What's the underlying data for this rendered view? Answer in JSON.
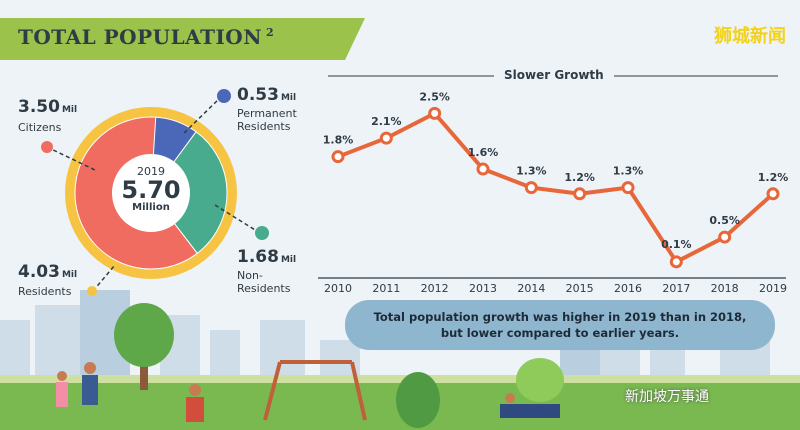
{
  "header": {
    "title": "TOTAL POPULATION",
    "superscript": "2",
    "watermark": "狮城新闻"
  },
  "donut": {
    "year": "2019",
    "total": "5.70",
    "total_unit": "Million",
    "segments": [
      {
        "value": "3.50",
        "unit": "Mil",
        "label": "Citizens",
        "color": "#f06c60",
        "share": 0.614
      },
      {
        "value": "0.53",
        "unit": "Mil",
        "label": "Permanent Residents",
        "color": "#4a67b8",
        "share": 0.093
      },
      {
        "value": "1.68",
        "unit": "Mil",
        "label": "Non-Residents",
        "color": "#48ab8e",
        "share": 0.295
      }
    ],
    "residents": {
      "value": "4.03",
      "unit": "Mil",
      "label": "Residents",
      "color": "#f6c342"
    }
  },
  "chart_data": {
    "type": "line",
    "title": "Slower Growth",
    "categories": [
      "2010",
      "2011",
      "2012",
      "2013",
      "2014",
      "2015",
      "2016",
      "2017",
      "2018",
      "2019"
    ],
    "values": [
      1.8,
      2.1,
      2.5,
      1.6,
      1.3,
      1.2,
      1.3,
      0.1,
      0.5,
      1.2
    ],
    "value_labels": [
      "1.8%",
      "2.1%",
      "2.5%",
      "1.6%",
      "1.3%",
      "1.2%",
      "1.3%",
      "0.1%",
      "0.5%",
      "1.2%"
    ],
    "line_color": "#e8673a",
    "ylim": [
      0,
      2.8
    ],
    "grid": false
  },
  "note": {
    "line1": "Total population growth was higher in 2019 than in 2018,",
    "line2": "but lower compared to earlier years."
  },
  "footer": {
    "watermark": "新加坡万事通"
  }
}
